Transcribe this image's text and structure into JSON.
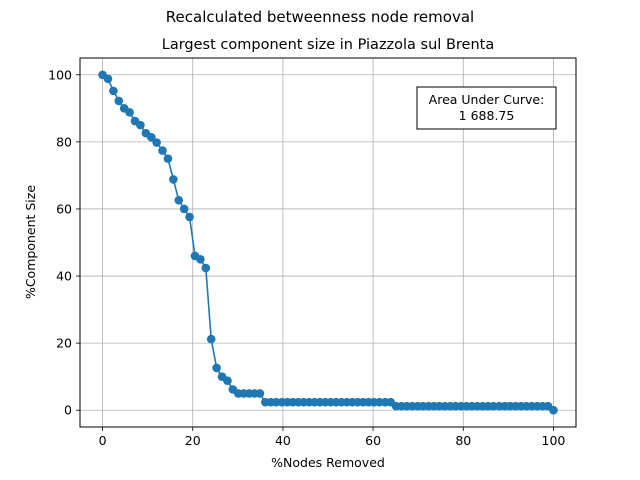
{
  "chart_data": {
    "type": "line",
    "suptitle": "Recalculated betweenness node removal",
    "title": "Largest component size in Piazzola sul Brenta",
    "xlabel": "%Nodes Removed",
    "ylabel": "%Component Size",
    "xlim": [
      -5,
      105
    ],
    "ylim": [
      -5,
      105
    ],
    "xticks": [
      0,
      20,
      40,
      60,
      80,
      100
    ],
    "yticks": [
      0,
      20,
      40,
      60,
      80,
      100
    ],
    "grid": true,
    "marker": "circle",
    "color": "#1f77b4",
    "annotation": {
      "line1": "Area Under Curve:",
      "line2": "1 688.75",
      "placement": "top-right"
    },
    "series": [
      {
        "x": [
          0,
          1.2,
          2.4,
          3.6,
          4.8,
          6.0,
          7.2,
          8.4,
          9.6,
          10.8,
          12.0,
          13.3,
          14.5,
          15.7,
          16.9,
          18.1,
          19.3,
          20.5,
          21.7,
          22.9,
          24.1,
          25.3,
          26.5,
          27.7,
          28.9,
          30.1,
          31.3,
          32.5,
          33.7,
          34.9,
          36.1,
          37.3,
          38.5,
          39.8,
          41.0,
          42.2,
          43.4,
          44.6,
          45.8,
          47.0,
          48.2,
          49.4,
          50.6,
          51.8,
          53.0,
          54.2,
          55.4,
          56.6,
          57.8,
          59.0,
          60.2,
          61.4,
          62.7,
          63.9,
          65.1,
          66.3,
          67.5,
          68.7,
          69.9,
          71.1,
          72.3,
          73.5,
          74.7,
          75.9,
          77.1,
          78.3,
          79.5,
          80.7,
          81.9,
          83.1,
          84.3,
          85.5,
          86.7,
          88.0,
          89.2,
          90.4,
          91.6,
          92.8,
          94.0,
          95.2,
          96.4,
          97.6,
          98.8,
          100.0
        ],
        "y": [
          100,
          98.8,
          95.2,
          92.2,
          90.0,
          88.8,
          86.2,
          85.0,
          82.6,
          81.4,
          79.8,
          77.4,
          75.0,
          68.8,
          62.6,
          60.0,
          57.6,
          46.0,
          45.0,
          42.4,
          21.2,
          12.6,
          10.0,
          8.8,
          6.2,
          5.0,
          5.0,
          5.0,
          5.0,
          5.0,
          2.4,
          2.4,
          2.4,
          2.4,
          2.4,
          2.4,
          2.4,
          2.4,
          2.4,
          2.4,
          2.4,
          2.4,
          2.4,
          2.4,
          2.4,
          2.4,
          2.4,
          2.4,
          2.4,
          2.4,
          2.4,
          2.4,
          2.4,
          2.4,
          1.2,
          1.2,
          1.2,
          1.2,
          1.2,
          1.2,
          1.2,
          1.2,
          1.2,
          1.2,
          1.2,
          1.2,
          1.2,
          1.2,
          1.2,
          1.2,
          1.2,
          1.2,
          1.2,
          1.2,
          1.2,
          1.2,
          1.2,
          1.2,
          1.2,
          1.2,
          1.2,
          1.2,
          1.2,
          0
        ]
      }
    ]
  }
}
